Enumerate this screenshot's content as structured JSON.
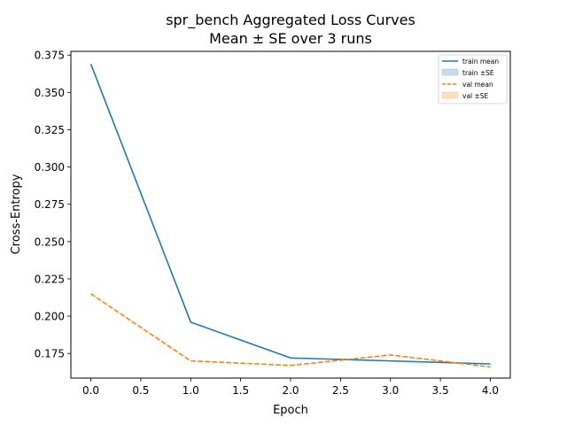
{
  "chart_data": {
    "type": "line",
    "title": "spr_bench Aggregated Loss Curves",
    "subtitle": "Mean ± SE over 3 runs",
    "xlabel": "Epoch",
    "ylabel": "Cross-Entropy",
    "xlim": [
      -0.2,
      4.2
    ],
    "ylim": [
      0.1585,
      0.3775
    ],
    "x_ticks": [
      0.0,
      0.5,
      1.0,
      1.5,
      2.0,
      2.5,
      3.0,
      3.5,
      4.0
    ],
    "x_tick_labels": [
      "0.0",
      "0.5",
      "1.0",
      "1.5",
      "2.0",
      "2.5",
      "3.0",
      "3.5",
      "4.0"
    ],
    "y_ticks": [
      0.175,
      0.2,
      0.225,
      0.25,
      0.275,
      0.3,
      0.325,
      0.35,
      0.375
    ],
    "y_tick_labels": [
      "0.175",
      "0.200",
      "0.225",
      "0.250",
      "0.275",
      "0.300",
      "0.325",
      "0.350",
      "0.375"
    ],
    "grid": false,
    "legend_position": "top-right",
    "x": [
      0,
      1,
      2,
      3,
      4
    ],
    "series": [
      {
        "name": "train mean",
        "values": [
          0.369,
          0.196,
          0.172,
          0.17,
          0.168
        ],
        "color": "#1f77b4",
        "style": "solid"
      },
      {
        "name": "train ±SE",
        "values": [
          0.369,
          0.196,
          0.172,
          0.17,
          0.168
        ],
        "color": "#1f77b4",
        "style": "band"
      },
      {
        "name": "val mean",
        "values": [
          0.215,
          0.17,
          0.167,
          0.174,
          0.166
        ],
        "color": "#ff7f0e",
        "style": "dashed"
      },
      {
        "name": "val ±SE",
        "values": [
          0.215,
          0.17,
          0.167,
          0.174,
          0.166
        ],
        "color": "#ff7f0e",
        "style": "band"
      }
    ]
  }
}
